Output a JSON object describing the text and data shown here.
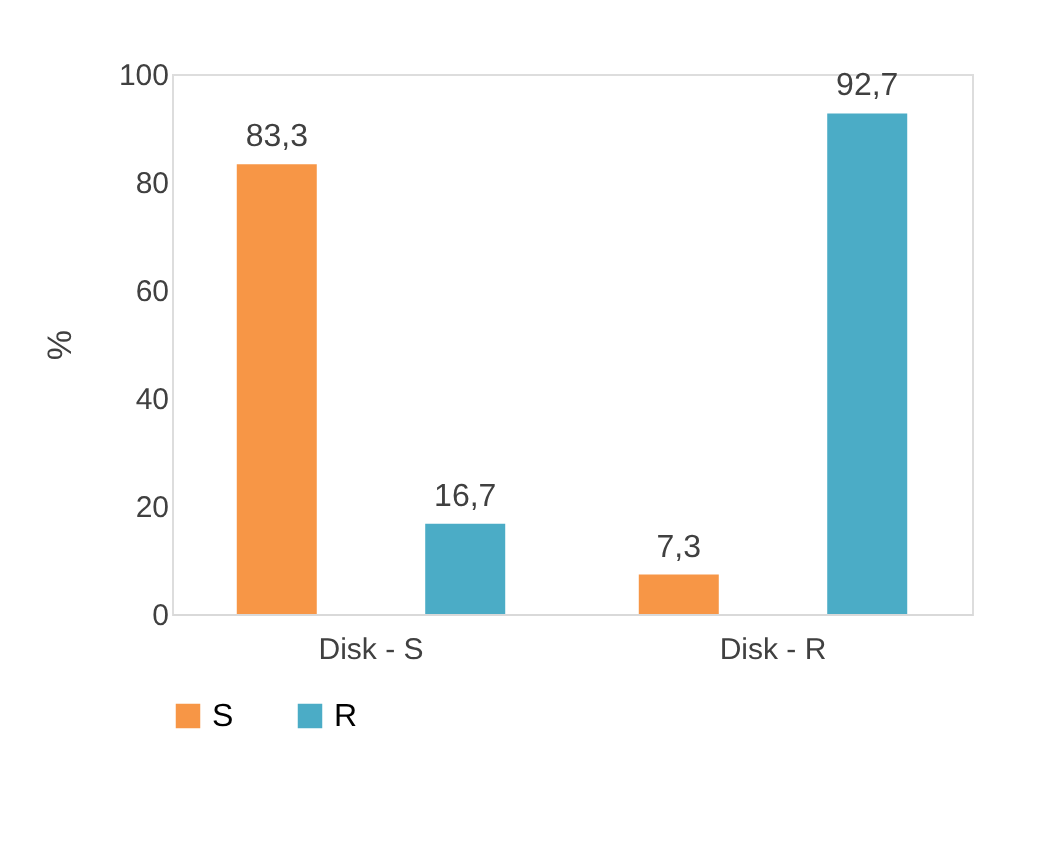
{
  "chart_data": {
    "type": "bar",
    "ylabel": "%",
    "categories": [
      "Disk - S",
      "Disk - R"
    ],
    "series": [
      {
        "name": "S",
        "color": "#f79646",
        "values": [
          83.3,
          7.3
        ],
        "value_labels": [
          "83,3",
          "7,3"
        ]
      },
      {
        "name": "R",
        "color": "#4bacc6",
        "values": [
          16.7,
          92.7
        ],
        "value_labels": [
          "16,7",
          "92,7"
        ]
      }
    ],
    "ylim": [
      0,
      100
    ],
    "yticks": [
      0,
      20,
      40,
      60,
      80,
      100
    ],
    "grid": false,
    "legend": "bottom"
  }
}
